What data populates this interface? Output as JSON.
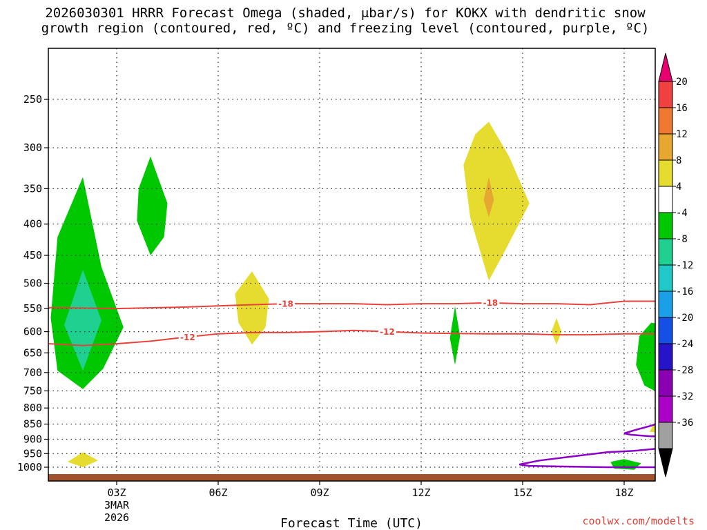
{
  "title_line1": "2026030301 HRRR Forecast Omega (shaded, μbar/s) for KOKX with dendritic snow",
  "title_line2": "growth region (contoured, red, ºC) and freezing level (contoured, purple, ºC)",
  "credit": "coolwx.com/modelts",
  "chart_data": {
    "type": "time-height cross section",
    "xlabel": "Forecast Time (UTC)",
    "x_hours_range": [
      1,
      19
    ],
    "x_ticks": [
      {
        "hour": 3,
        "label": "03Z",
        "sub1": "3MAR",
        "sub2": "2026"
      },
      {
        "hour": 6,
        "label": "06Z"
      },
      {
        "hour": 9,
        "label": "09Z"
      },
      {
        "hour": 12,
        "label": "12Z"
      },
      {
        "hour": 15,
        "label": "15Z"
      },
      {
        "hour": 18,
        "label": "18Z"
      }
    ],
    "y_ticks": [
      250,
      300,
      350,
      400,
      450,
      500,
      550,
      600,
      650,
      700,
      750,
      800,
      850,
      900,
      950,
      1000
    ],
    "colorbar": {
      "labels": [
        "20",
        "16",
        "12",
        "8",
        "4",
        "-4",
        "-8",
        "-12",
        "-16",
        "-20",
        "-24",
        "-28",
        "-32",
        "-36"
      ],
      "colors": [
        "#e8006e",
        "#f04040",
        "#f07830",
        "#e6a830",
        "#e6dc30",
        "#ffffff",
        "#00c800",
        "#20d090",
        "#20c8c8",
        "#1aa0e8",
        "#1450e6",
        "#2814c8",
        "#8c00b4",
        "#aa00c8",
        "#a0a0a0",
        "#000000"
      ]
    },
    "omega_features": [
      {
        "color": "#00c800",
        "value": "-4 to -8",
        "points": [
          [
            2.0,
            335
          ],
          [
            2.55,
            470
          ],
          [
            3.2,
            590
          ],
          [
            2.6,
            690
          ],
          [
            2.0,
            745
          ],
          [
            1.25,
            695
          ],
          [
            1.05,
            570
          ],
          [
            1.25,
            420
          ]
        ]
      },
      {
        "color": "#20d090",
        "value": "-8 to -12",
        "points": [
          [
            2.0,
            475
          ],
          [
            2.55,
            575
          ],
          [
            2.0,
            695
          ],
          [
            1.45,
            585
          ]
        ]
      },
      {
        "color": "#00c800",
        "value": "-4 to -8",
        "points": [
          [
            4.0,
            310
          ],
          [
            4.5,
            370
          ],
          [
            4.4,
            420
          ],
          [
            4.0,
            450
          ],
          [
            3.6,
            395
          ],
          [
            3.65,
            350
          ]
        ]
      },
      {
        "color": "#00c800",
        "value": "-4 to -8",
        "points": [
          [
            13.0,
            545
          ],
          [
            13.15,
            610
          ],
          [
            13.0,
            680
          ],
          [
            12.85,
            615
          ]
        ]
      },
      {
        "color": "#00c800",
        "value": "-4 to -8",
        "points": [
          [
            19.2,
            585
          ],
          [
            19.1,
            760
          ],
          [
            18.6,
            735
          ],
          [
            18.35,
            680
          ],
          [
            18.45,
            610
          ],
          [
            18.8,
            580
          ]
        ]
      },
      {
        "color": "#00c800",
        "value": "-4 to -8",
        "points": [
          [
            18.0,
            970
          ],
          [
            18.5,
            985
          ],
          [
            18.3,
            1010
          ],
          [
            17.7,
            1005
          ],
          [
            17.6,
            980
          ]
        ]
      },
      {
        "color": "#e6dc30",
        "value": "4 to 8",
        "points": [
          [
            7.0,
            478
          ],
          [
            7.5,
            530
          ],
          [
            7.4,
            590
          ],
          [
            7.0,
            630
          ],
          [
            6.6,
            580
          ],
          [
            6.5,
            520
          ]
        ]
      },
      {
        "color": "#e6dc30",
        "value": "4 to 8",
        "points": [
          [
            14.0,
            272
          ],
          [
            14.6,
            310
          ],
          [
            15.2,
            370
          ],
          [
            14.5,
            440
          ],
          [
            14.0,
            495
          ],
          [
            13.45,
            390
          ],
          [
            13.25,
            320
          ],
          [
            13.6,
            285
          ]
        ]
      },
      {
        "color": "#e6a830",
        "value": "8 to 12",
        "points": [
          [
            14.0,
            335
          ],
          [
            14.15,
            365
          ],
          [
            14.0,
            390
          ],
          [
            13.85,
            365
          ]
        ]
      },
      {
        "color": "#e6dc30",
        "value": "4 to 8",
        "points": [
          [
            16.0,
            570
          ],
          [
            16.15,
            600
          ],
          [
            16.0,
            630
          ],
          [
            15.85,
            600
          ]
        ]
      },
      {
        "color": "#e6dc30",
        "value": "4 to 8",
        "points": [
          [
            2.0,
            945
          ],
          [
            2.45,
            975
          ],
          [
            2.0,
            1000
          ],
          [
            1.55,
            980
          ]
        ]
      },
      {
        "color": "#e6dc30",
        "value": "4 to 8",
        "points": [
          [
            19.2,
            850
          ],
          [
            19.2,
            880
          ],
          [
            18.75,
            875
          ],
          [
            18.85,
            855
          ]
        ]
      }
    ],
    "dgz_contours": [
      {
        "label": "-18",
        "color": "#e8413a",
        "label_positions": [
          8.0,
          14.05
        ],
        "points": [
          [
            1,
            548
          ],
          [
            3,
            550
          ],
          [
            5,
            547
          ],
          [
            7,
            542
          ],
          [
            8,
            540
          ],
          [
            10,
            540
          ],
          [
            11,
            542
          ],
          [
            12,
            540
          ],
          [
            13,
            540
          ],
          [
            14,
            538
          ],
          [
            15,
            540
          ],
          [
            16,
            540
          ],
          [
            17,
            542
          ],
          [
            18,
            535
          ],
          [
            19,
            535
          ]
        ]
      },
      {
        "label": "-12",
        "color": "#e8413a",
        "label_positions": [
          5.1,
          11.0
        ],
        "points": [
          [
            1,
            628
          ],
          [
            2,
            632
          ],
          [
            3,
            628
          ],
          [
            4,
            622
          ],
          [
            5,
            613
          ],
          [
            6,
            605
          ],
          [
            7,
            602
          ],
          [
            8,
            602
          ],
          [
            9,
            600
          ],
          [
            10,
            597
          ],
          [
            11,
            600
          ],
          [
            12,
            603
          ],
          [
            13,
            604
          ],
          [
            14,
            605
          ],
          [
            15,
            605
          ],
          [
            16,
            607
          ],
          [
            17,
            607
          ],
          [
            18,
            605
          ],
          [
            19,
            605
          ]
        ]
      }
    ],
    "freezing_level": {
      "color": "#8c00c8",
      "points": [
        [
          19.2,
          840
        ],
        [
          18.8,
          855
        ],
        [
          18.3,
          870
        ],
        [
          18.0,
          880
        ],
        [
          18.2,
          885
        ],
        [
          18.8,
          890
        ],
        [
          19.2,
          890
        ],
        [
          19.2,
          930
        ],
        [
          18.3,
          940
        ],
        [
          17.5,
          945
        ],
        [
          16.5,
          960
        ],
        [
          15.5,
          975
        ],
        [
          14.9,
          990
        ],
        [
          15.2,
          995
        ],
        [
          16.5,
          998
        ],
        [
          17.5,
          1000
        ],
        [
          19.2,
          1000
        ]
      ]
    },
    "terrain_color": "#a0522d"
  }
}
